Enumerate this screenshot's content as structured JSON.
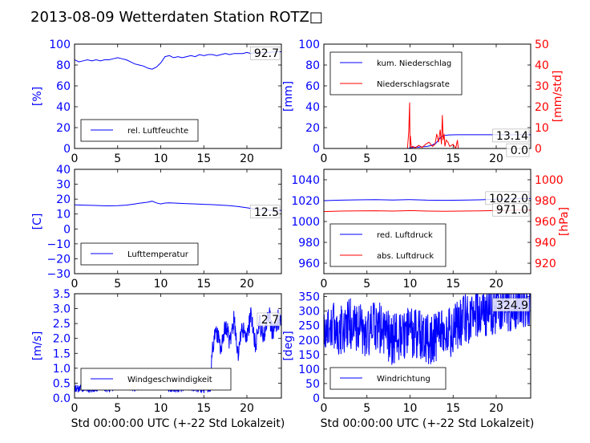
{
  "title": "2013-08-09 Wetterdaten Station ROTZ□",
  "colors": {
    "primary": "#0000ff",
    "secondary": "#ff0000",
    "axis": "#000000",
    "grid": "none"
  },
  "chart_data": [
    {
      "type": "line",
      "ylabel": "[%]",
      "xlim": [
        0,
        24
      ],
      "ylim": [
        0,
        100
      ],
      "xticks": [
        "0",
        "5",
        "10",
        "15",
        "20"
      ],
      "yticks": [
        "0",
        "20",
        "40",
        "60",
        "80",
        "100"
      ],
      "current_value": "92.7",
      "legend": "bottom-left",
      "series": [
        {
          "name": "rel. Luftfeuchte",
          "color": "#0000ff",
          "x": [
            0,
            0.5,
            1,
            1.5,
            2,
            2.5,
            3,
            3.5,
            4,
            4.5,
            5,
            5.5,
            6,
            6.5,
            7,
            7.5,
            8,
            8.5,
            9,
            9.5,
            10,
            10.5,
            11,
            11.5,
            12,
            12.5,
            13,
            13.5,
            14,
            14.5,
            15,
            15.5,
            16,
            16.5,
            17,
            17.5,
            18,
            18.5,
            19,
            19.5,
            20,
            20.5,
            21,
            21.5,
            22,
            22.5,
            23,
            23.5,
            24
          ],
          "y": [
            85,
            83,
            84,
            85,
            84,
            85,
            84,
            85,
            85,
            86,
            87,
            86,
            85,
            83,
            81,
            80,
            79,
            77,
            76,
            78,
            82,
            88,
            89,
            87,
            88,
            87,
            88,
            89,
            88,
            90,
            89,
            90,
            90,
            89,
            90,
            91,
            90,
            91,
            91,
            91,
            92,
            91,
            92,
            92,
            92,
            92,
            92.5,
            92.7,
            92.7
          ]
        }
      ]
    },
    {
      "type": "line",
      "ylabel": "[mm]",
      "y2label": "[mm/std]",
      "xlim": [
        0,
        24
      ],
      "ylim": [
        0,
        100
      ],
      "y2lim": [
        0,
        50
      ],
      "xticks": [
        "0",
        "5",
        "10",
        "15",
        "20"
      ],
      "yticks": [
        "0",
        "20",
        "40",
        "60",
        "80",
        "100"
      ],
      "y2ticks": [
        "0",
        "10",
        "20",
        "30",
        "40",
        "50"
      ],
      "current_values": [
        "13.14",
        "0.0"
      ],
      "legend": "top-left",
      "series": [
        {
          "name": "kum. Niederschlag",
          "color": "#0000ff",
          "axis": "left",
          "x": [
            0,
            9.8,
            10,
            10.3,
            10.6,
            11,
            11.5,
            12,
            12.5,
            13,
            13.3,
            13.6,
            14,
            14.5,
            15,
            15.5,
            16,
            20,
            24
          ],
          "y": [
            0,
            0,
            0.5,
            1,
            1.2,
            1.4,
            1.6,
            2,
            3,
            5,
            8,
            11,
            12.5,
            13,
            13.1,
            13.14,
            13.14,
            13.14,
            13.14
          ]
        },
        {
          "name": "Niederschlagsrate",
          "color": "#ff0000",
          "axis": "right",
          "x": [
            0,
            9.7,
            9.85,
            9.95,
            10,
            10.05,
            10.15,
            10.3,
            10.6,
            11,
            11.4,
            11.8,
            12.2,
            12.6,
            12.9,
            13.1,
            13.3,
            13.5,
            13.65,
            13.75,
            13.85,
            13.95,
            14.05,
            14.2,
            14.4,
            14.6,
            15,
            15.3,
            15.5,
            15.6,
            15.7,
            16,
            24
          ],
          "y": [
            0,
            0,
            8,
            22,
            1,
            6,
            0.5,
            1,
            0.3,
            1.5,
            0.5,
            2,
            3,
            1,
            2,
            7,
            3,
            9,
            2,
            16,
            4,
            7,
            1,
            4,
            3,
            1,
            2,
            0,
            4,
            0,
            0,
            0,
            0
          ]
        }
      ]
    },
    {
      "type": "line",
      "ylabel": "[C]",
      "xlim": [
        0,
        24
      ],
      "ylim": [
        -30,
        40
      ],
      "xticks": [
        "0",
        "5",
        "10",
        "15",
        "20"
      ],
      "yticks": [
        "−30",
        "−20",
        "−10",
        "0",
        "10",
        "20",
        "30",
        "40"
      ],
      "current_value": "12.5",
      "legend": "bottom-left",
      "series": [
        {
          "name": "Lufttemperatur",
          "color": "#0000ff",
          "x": [
            0,
            1,
            2,
            3,
            4,
            5,
            6,
            7,
            7.5,
            8,
            8.5,
            9,
            9.5,
            10,
            10.5,
            11,
            12,
            13,
            14,
            15,
            16,
            17,
            18,
            19,
            20,
            21,
            22,
            23,
            24
          ],
          "y": [
            16.2,
            16,
            15.8,
            15.6,
            15.5,
            15.6,
            16,
            16.8,
            17.3,
            17.6,
            18,
            18.6,
            17.5,
            16.8,
            17.4,
            17.5,
            17.3,
            17,
            16.8,
            16.5,
            16.3,
            16,
            15.6,
            15,
            14.2,
            13.3,
            12.8,
            12.5,
            12.5
          ]
        }
      ]
    },
    {
      "type": "line",
      "ylabel": "[hPa]",
      "xlim": [
        0,
        24
      ],
      "ylim": [
        950,
        1050
      ],
      "y2lim": [
        910,
        1010
      ],
      "xticks": [
        "0",
        "5",
        "10",
        "15",
        "20"
      ],
      "yticks": [
        "960",
        "980",
        "1000",
        "1020",
        "1040"
      ],
      "y2ticks": [
        "920",
        "940",
        "960",
        "980",
        "1000"
      ],
      "current_values": [
        "1022.0",
        "971.0"
      ],
      "legend": "bottom-left",
      "series": [
        {
          "name": "red. Luftdruck",
          "color": "#0000ff",
          "axis": "left",
          "x": [
            0,
            2,
            4,
            6,
            8,
            10,
            12,
            14,
            16,
            18,
            20,
            22,
            24
          ],
          "y": [
            1020,
            1020.5,
            1020.8,
            1021,
            1020.6,
            1021,
            1020.5,
            1020.3,
            1020.5,
            1020.8,
            1021.3,
            1021.8,
            1022
          ]
        },
        {
          "name": "abs. Luftdruck",
          "color": "#ff0000",
          "axis": "right",
          "x": [
            0,
            2,
            4,
            6,
            8,
            10,
            12,
            14,
            16,
            18,
            20,
            22,
            24
          ],
          "y": [
            969.5,
            970,
            970.2,
            970.3,
            970,
            970.5,
            970,
            969.8,
            970,
            970.2,
            970.5,
            970.8,
            971
          ]
        }
      ]
    },
    {
      "type": "line",
      "ylabel": "[m/s]",
      "xlabel": "Std 00:00:00 UTC (+-22 Std Lokalzeit)",
      "xlim": [
        0,
        24
      ],
      "ylim": [
        0,
        3.5
      ],
      "xticks": [
        "0",
        "5",
        "10",
        "15",
        "20"
      ],
      "yticks": [
        "0.0",
        "0.5",
        "1.0",
        "1.5",
        "2.0",
        "2.5",
        "3.0",
        "3.5"
      ],
      "current_value": "2.7",
      "legend": "bottom-left",
      "series": [
        {
          "name": "Windgeschwindigkeit",
          "color": "#0000ff",
          "x": [
            0,
            1,
            2,
            3,
            4,
            5,
            6,
            7,
            8,
            9,
            10,
            11,
            12,
            13,
            14,
            15,
            15.8,
            16,
            16.5,
            17,
            17.5,
            18,
            18.5,
            19,
            19.5,
            20,
            20.5,
            21,
            21.5,
            22,
            22.5,
            23,
            23.5,
            24
          ],
          "y": [
            0.3,
            0.35,
            0.3,
            0.4,
            0.3,
            0.45,
            0.4,
            0.35,
            0.5,
            0.4,
            0.45,
            0.35,
            0.3,
            0.4,
            0.35,
            0.3,
            0.35,
            1.8,
            2.2,
            1.6,
            2.5,
            1.9,
            2.6,
            1.5,
            2.4,
            2.0,
            2.8,
            1.7,
            2.5,
            2.1,
            2.9,
            2.2,
            2.6,
            2.7
          ],
          "noise": 0.35
        }
      ]
    },
    {
      "type": "line",
      "ylabel": "[deg]",
      "xlabel": "Std 00:00:00 UTC (+-22 Std Lokalzeit)",
      "xlim": [
        0,
        24
      ],
      "ylim": [
        0,
        360
      ],
      "xticks": [
        "0",
        "5",
        "10",
        "15",
        "20"
      ],
      "yticks": [
        "0",
        "50",
        "100",
        "150",
        "200",
        "250",
        "300",
        "350"
      ],
      "current_value": "324.9",
      "legend": "bottom-left",
      "series": [
        {
          "name": "Windrichtung",
          "color": "#0000ff",
          "x": [
            0,
            1,
            2,
            3,
            4,
            5,
            6,
            7,
            8,
            9,
            10,
            11,
            12,
            13,
            14,
            15,
            16,
            17,
            18,
            19,
            20,
            21,
            22,
            23,
            24
          ],
          "y": [
            240,
            250,
            230,
            260,
            240,
            220,
            250,
            230,
            200,
            210,
            230,
            220,
            200,
            210,
            220,
            230,
            260,
            280,
            290,
            300,
            310,
            320,
            315,
            320,
            325
          ],
          "noise": 90
        }
      ]
    }
  ]
}
